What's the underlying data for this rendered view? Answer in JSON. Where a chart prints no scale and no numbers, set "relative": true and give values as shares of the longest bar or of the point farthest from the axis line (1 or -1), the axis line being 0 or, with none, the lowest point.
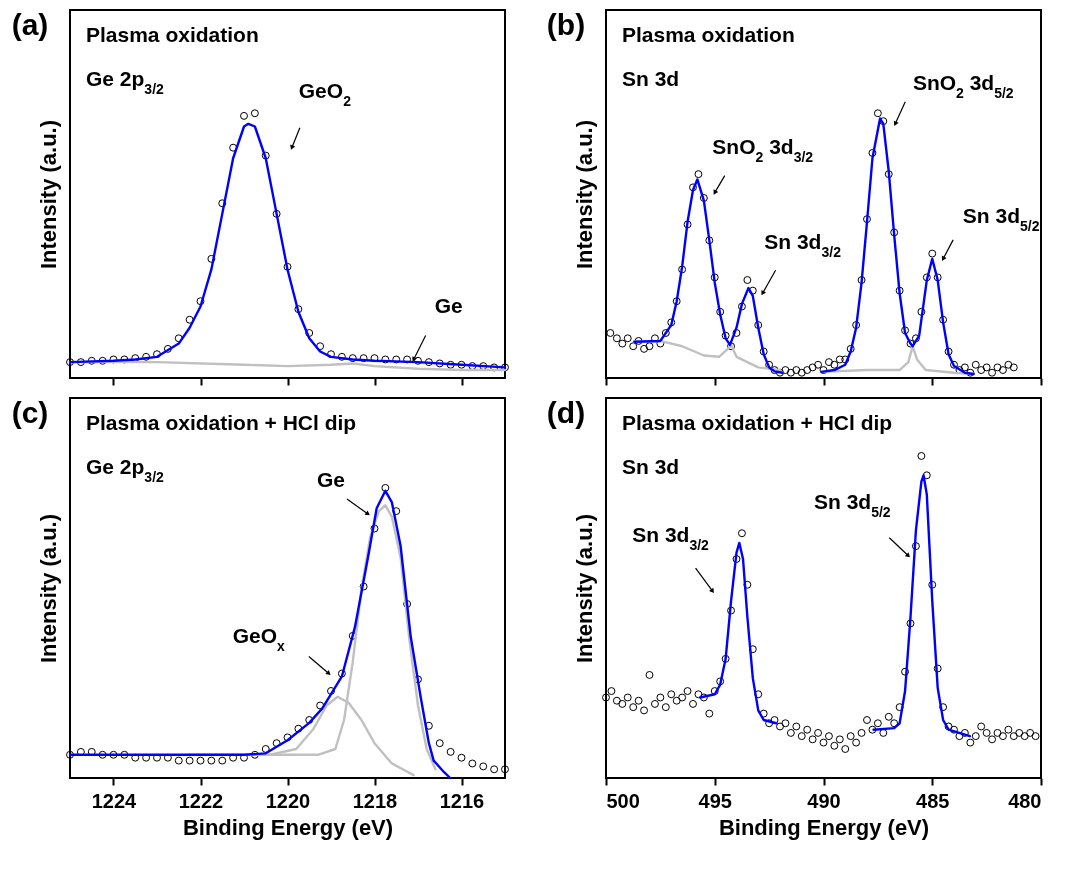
{
  "chart_data": [
    {
      "type": "scatter",
      "title": "(a)",
      "ylabel": "Intensity (a.u.)",
      "relative": true,
      "tick_labels": false,
      "xlim": [
        1225,
        1215
      ],
      "xticks": [
        1224,
        1222,
        1220,
        1218,
        1216
      ],
      "annotations": [
        "Plasma oxidation",
        "Ge 2p$_{3/2}$",
        {
          "text": "GeO$_{2}$",
          "x": 1219.9,
          "y": 0.87
        },
        {
          "text": "Ge",
          "x": 1217.1,
          "y": 0.07
        }
      ],
      "series": [
        {
          "type": "scatter",
          "marker": "circle",
          "color": "#000000",
          "x": [
            1225,
            1224.75,
            1224.5,
            1224.25,
            1224,
            1223.75,
            1223.5,
            1223.25,
            1223,
            1222.75,
            1222.5,
            1222.25,
            1222,
            1221.75,
            1221.5,
            1221.25,
            1221,
            1220.75,
            1220.5,
            1220.25,
            1220,
            1219.75,
            1219.5,
            1219.25,
            1219,
            1218.75,
            1218.5,
            1218.25,
            1218,
            1217.75,
            1217.5,
            1217.25,
            1217,
            1216.75,
            1216.5,
            1216.25,
            1216,
            1215.75,
            1215.5,
            1215.25,
            1215
          ],
          "values": [
            0.06,
            0.06,
            0.065,
            0.065,
            0.07,
            0.07,
            0.075,
            0.08,
            0.09,
            0.11,
            0.15,
            0.22,
            0.29,
            0.45,
            0.66,
            0.87,
            0.99,
            1.0,
            0.84,
            0.62,
            0.42,
            0.26,
            0.17,
            0.12,
            0.09,
            0.08,
            0.075,
            0.075,
            0.075,
            0.07,
            0.07,
            0.07,
            0.065,
            0.06,
            0.055,
            0.05,
            0.05,
            0.045,
            0.045,
            0.04,
            0.04
          ]
        },
        {
          "type": "line",
          "color": "#c0c0c0",
          "x": [
            1225,
            1223,
            1221,
            1220,
            1219,
            1218.5,
            1218,
            1217,
            1216,
            1215
          ],
          "values": [
            0.06,
            0.06,
            0.05,
            0.045,
            0.05,
            0.055,
            0.045,
            0.035,
            0.03,
            0.03
          ]
        },
        {
          "type": "line",
          "color": "#0000ff",
          "x": [
            1225,
            1224,
            1223.5,
            1223,
            1222.5,
            1222.25,
            1222,
            1221.75,
            1221.5,
            1221.25,
            1221,
            1220.9,
            1220.75,
            1220.5,
            1220.25,
            1220,
            1219.75,
            1219.5,
            1219.25,
            1219,
            1218.5,
            1218,
            1217,
            1216,
            1215
          ],
          "values": [
            0.06,
            0.065,
            0.07,
            0.08,
            0.13,
            0.19,
            0.27,
            0.41,
            0.62,
            0.83,
            0.95,
            0.96,
            0.95,
            0.83,
            0.62,
            0.41,
            0.25,
            0.15,
            0.1,
            0.08,
            0.07,
            0.065,
            0.06,
            0.05,
            0.04
          ]
        }
      ]
    },
    {
      "type": "scatter",
      "title": "(b)",
      "ylabel": "Intensity (a.u.)",
      "relative": true,
      "tick_labels": false,
      "xlim": [
        500,
        480
      ],
      "xticks": [
        500,
        495,
        490,
        485,
        480
      ],
      "annotations": [
        "Plasma oxidation",
        "Sn 3d",
        {
          "text": "SnO$_{2}$ 3d$_{3/2}$",
          "x": 495.0,
          "y": 0.7
        },
        {
          "text": "Sn 3d$_{3/2}$",
          "x": 492.8,
          "y": 0.32
        },
        {
          "text": "SnO$_{2}$ 3d$_{5/2}$",
          "x": 486.7,
          "y": 0.96
        },
        {
          "text": "Sn 3d$_{5/2}$",
          "x": 484.5,
          "y": 0.45
        }
      ],
      "series": [
        {
          "type": "scatter",
          "marker": "circle",
          "color": "#000000",
          "x": [
            499.8,
            499.5,
            499.25,
            499,
            498.75,
            498.5,
            498.25,
            498,
            497.75,
            497.5,
            497.25,
            497,
            496.75,
            496.5,
            496.25,
            496,
            495.75,
            495.5,
            495.25,
            495,
            494.75,
            494.5,
            494.25,
            494,
            493.75,
            493.5,
            493.25,
            493,
            492.75,
            492.5,
            492.25,
            492,
            491.75,
            491.5,
            491.25,
            491,
            490.75,
            490.5,
            490.25,
            490,
            489.75,
            489.5,
            489.25,
            489,
            488.75,
            488.5,
            488.25,
            488,
            487.75,
            487.5,
            487.25,
            487,
            486.75,
            486.5,
            486.25,
            486,
            485.75,
            485.5,
            485.25,
            485,
            484.75,
            484.5,
            484.25,
            484,
            483.75,
            483.5,
            483.25,
            483,
            482.75,
            482.5,
            482.25,
            482,
            481.75,
            481.5,
            481.25
          ],
          "values": [
            0.17,
            0.15,
            0.13,
            0.15,
            0.12,
            0.14,
            0.11,
            0.12,
            0.15,
            0.13,
            0.17,
            0.21,
            0.29,
            0.41,
            0.58,
            0.72,
            0.77,
            0.68,
            0.52,
            0.38,
            0.25,
            0.16,
            0.12,
            0.17,
            0.27,
            0.37,
            0.33,
            0.2,
            0.1,
            0.05,
            0.03,
            0.02,
            0.03,
            0.02,
            0.03,
            0.02,
            0.03,
            0.04,
            0.05,
            0.03,
            0.06,
            0.05,
            0.07,
            0.07,
            0.11,
            0.2,
            0.37,
            0.6,
            0.85,
            1.0,
            0.97,
            0.77,
            0.55,
            0.33,
            0.18,
            0.13,
            0.15,
            0.25,
            0.38,
            0.47,
            0.38,
            0.22,
            0.1,
            0.05,
            0.03,
            0.04,
            0.02,
            0.05,
            0.03,
            0.04,
            0.02,
            0.04,
            0.03,
            0.05,
            0.04
          ]
        },
        {
          "type": "line",
          "color": "#c0c0c0",
          "x": [
            498.7,
            497.5,
            496.5,
            495.5,
            494.8,
            494.4,
            494.25,
            494,
            493.5,
            493,
            492,
            491.9
          ],
          "values": [
            0.137,
            0.14,
            0.12,
            0.085,
            0.08,
            0.11,
            0.125,
            0.08,
            0.06,
            0.04,
            0.03,
            0.02
          ]
        },
        {
          "type": "line",
          "color": "#c0c0c0",
          "x": [
            490.1,
            488,
            486.5,
            486.1,
            485.9,
            485.7,
            485.3,
            484,
            483.1
          ],
          "values": [
            0.023,
            0.03,
            0.03,
            0.06,
            0.12,
            0.07,
            0.03,
            0.02,
            0.015
          ]
        },
        {
          "type": "line",
          "color": "#0000ff",
          "x": [
            498.7,
            497.5,
            497,
            496.75,
            496.5,
            496.25,
            496,
            495.8,
            495.5,
            495.25,
            495,
            494.75,
            494.5,
            494.3,
            494,
            493.75,
            493.45,
            493.25,
            493,
            492.75,
            492.5,
            492.25,
            491.9
          ],
          "values": [
            0.137,
            0.14,
            0.2,
            0.29,
            0.42,
            0.59,
            0.71,
            0.75,
            0.67,
            0.52,
            0.36,
            0.24,
            0.15,
            0.125,
            0.19,
            0.28,
            0.34,
            0.31,
            0.19,
            0.09,
            0.04,
            0.025,
            0.02
          ]
        },
        {
          "type": "line",
          "color": "#0000ff",
          "x": [
            490.1,
            489.5,
            489,
            488.75,
            488.5,
            488.25,
            488,
            487.75,
            487.4,
            487.25,
            487,
            486.75,
            486.5,
            486.25,
            486,
            485.9,
            485.6,
            485.25,
            485,
            484.75,
            484.5,
            484.25,
            484,
            483.5,
            483.1
          ],
          "values": [
            0.023,
            0.03,
            0.05,
            0.1,
            0.19,
            0.36,
            0.59,
            0.83,
            0.98,
            0.96,
            0.78,
            0.54,
            0.32,
            0.17,
            0.13,
            0.12,
            0.16,
            0.37,
            0.45,
            0.37,
            0.21,
            0.09,
            0.045,
            0.02,
            0.015
          ]
        }
      ]
    },
    {
      "type": "scatter",
      "title": "(c)",
      "xlabel": "Binding Energy (eV)",
      "ylabel": "Intensity (a.u.)",
      "relative": true,
      "tick_labels": "x",
      "xlim": [
        1225,
        1215
      ],
      "xticks": [
        1224,
        1222,
        1220,
        1218,
        1216
      ],
      "annotations": [
        "Plasma oxidation + HCl dip",
        "Ge 2p$_{3/2}$",
        {
          "text": "Ge",
          "x": 1218.15,
          "y": 0.91
        },
        {
          "text": "GeO$_{x}$",
          "x": 1219.05,
          "y": 0.36
        }
      ],
      "series": [
        {
          "type": "scatter",
          "marker": "circle",
          "color": "#000000",
          "x": [
            1225,
            1224.75,
            1224.5,
            1224.25,
            1224,
            1223.75,
            1223.5,
            1223.25,
            1223,
            1222.75,
            1222.5,
            1222.25,
            1222,
            1221.75,
            1221.5,
            1221.25,
            1221,
            1220.75,
            1220.5,
            1220.25,
            1220,
            1219.75,
            1219.5,
            1219.25,
            1219,
            1218.75,
            1218.5,
            1218.25,
            1218,
            1217.75,
            1217.5,
            1217.25,
            1217,
            1216.75,
            1216.5,
            1216.25,
            1216,
            1215.75,
            1215.5,
            1215.25,
            1215
          ],
          "values": [
            0.08,
            0.09,
            0.09,
            0.08,
            0.08,
            0.08,
            0.07,
            0.07,
            0.07,
            0.07,
            0.06,
            0.06,
            0.06,
            0.06,
            0.06,
            0.07,
            0.07,
            0.08,
            0.1,
            0.12,
            0.14,
            0.17,
            0.2,
            0.25,
            0.3,
            0.36,
            0.49,
            0.66,
            0.86,
            1.0,
            0.92,
            0.6,
            0.34,
            0.18,
            0.12,
            0.09,
            0.07,
            0.05,
            0.04,
            0.03,
            0.03
          ]
        },
        {
          "type": "line",
          "color": "#c0c0c0",
          "x": [
            1222.3,
            1219.3,
            1218.9,
            1218.7,
            1218.5,
            1218.3,
            1218.1,
            1217.9,
            1217.75,
            1217.6,
            1217.4,
            1217.2,
            1217,
            1216.8,
            1216.6
          ],
          "values": [
            0.08,
            0.08,
            0.1,
            0.2,
            0.4,
            0.65,
            0.83,
            0.92,
            0.94,
            0.9,
            0.76,
            0.48,
            0.25,
            0.1,
            0.03
          ]
        },
        {
          "type": "line",
          "color": "#c0c0c0",
          "x": [
            1220.4,
            1219.8,
            1219.4,
            1219.1,
            1218.85,
            1218.6,
            1218.3,
            1218,
            1217.6,
            1217.1
          ],
          "values": [
            0.08,
            0.1,
            0.17,
            0.25,
            0.28,
            0.26,
            0.2,
            0.12,
            0.05,
            0.01
          ]
        },
        {
          "type": "line",
          "color": "#0000ff",
          "x": [
            1225,
            1221,
            1220.5,
            1220,
            1219.5,
            1219.2,
            1218.75,
            1218.45,
            1218.15,
            1217.95,
            1217.75,
            1217.6,
            1217.4,
            1217.17,
            1216.94,
            1216.75,
            1216.64,
            1216.4,
            1216.26
          ],
          "values": [
            0.08,
            0.08,
            0.085,
            0.13,
            0.19,
            0.24,
            0.35,
            0.52,
            0.76,
            0.93,
            0.99,
            0.95,
            0.8,
            0.49,
            0.28,
            0.12,
            0.06,
            0.02,
            0
          ]
        }
      ]
    },
    {
      "type": "scatter",
      "title": "(d)",
      "xlabel": "Binding Energy (eV)",
      "ylabel": "Intensity (a.u.)",
      "relative": true,
      "tick_labels": "x",
      "xlim": [
        500,
        480
      ],
      "xticks": [
        500,
        495,
        490,
        485,
        480
      ],
      "annotations": [
        "Plasma oxidation + HCl dip",
        "Sn 3d",
        {
          "text": "Sn 3d$_{3/2}$",
          "x": 495.1,
          "y": 0.58
        },
        {
          "text": "Sn 3d$_{5/2}$",
          "x": 486.1,
          "y": 0.69
        }
      ],
      "series": [
        {
          "type": "scatter",
          "marker": "circle",
          "color": "#000000",
          "x": [
            500,
            499.75,
            499.5,
            499.25,
            499,
            498.75,
            498.5,
            498.25,
            498,
            497.75,
            497.5,
            497.25,
            497,
            496.75,
            496.5,
            496.25,
            496,
            495.75,
            495.5,
            495.25,
            495,
            494.75,
            494.5,
            494.25,
            494,
            493.75,
            493.5,
            493.25,
            493,
            492.75,
            492.5,
            492.25,
            492,
            491.75,
            491.5,
            491.25,
            491,
            490.75,
            490.5,
            490.25,
            490,
            489.75,
            489.5,
            489.25,
            489,
            488.75,
            488.5,
            488.25,
            488,
            487.75,
            487.5,
            487.25,
            487,
            486.75,
            486.5,
            486.25,
            486,
            485.75,
            485.5,
            485.25,
            485,
            484.75,
            484.5,
            484.25,
            484,
            483.75,
            483.5,
            483.25,
            483,
            482.75,
            482.5,
            482.25,
            482,
            481.75,
            481.5,
            481.25,
            481,
            480.75,
            480.5,
            480.25
          ],
          "values": [
            0.25,
            0.27,
            0.24,
            0.23,
            0.25,
            0.22,
            0.24,
            0.21,
            0.32,
            0.23,
            0.25,
            0.22,
            0.26,
            0.24,
            0.25,
            0.27,
            0.23,
            0.26,
            0.25,
            0.2,
            0.27,
            0.3,
            0.37,
            0.52,
            0.68,
            0.76,
            0.6,
            0.4,
            0.26,
            0.2,
            0.17,
            0.18,
            0.16,
            0.17,
            0.14,
            0.16,
            0.13,
            0.15,
            0.12,
            0.14,
            0.11,
            0.13,
            0.1,
            0.12,
            0.09,
            0.13,
            0.11,
            0.14,
            0.18,
            0.15,
            0.17,
            0.14,
            0.19,
            0.17,
            0.22,
            0.33,
            0.48,
            0.72,
            1.0,
            0.94,
            0.6,
            0.34,
            0.22,
            0.16,
            0.15,
            0.13,
            0.14,
            0.11,
            0.13,
            0.16,
            0.14,
            0.12,
            0.14,
            0.13,
            0.15,
            0.13,
            0.14,
            0.13,
            0.14,
            0.13
          ]
        },
        {
          "type": "line",
          "color": "#0000ff",
          "x": [
            495.67,
            495,
            494.75,
            494.5,
            494.25,
            494,
            493.87,
            493.7,
            493.5,
            493.25,
            493,
            492.75,
            492.17
          ],
          "values": [
            0.25,
            0.26,
            0.29,
            0.37,
            0.55,
            0.7,
            0.73,
            0.68,
            0.5,
            0.31,
            0.21,
            0.18,
            0.17
          ]
        },
        {
          "type": "line",
          "color": "#0000ff",
          "x": [
            487.7,
            486.75,
            486.5,
            486.25,
            486,
            485.75,
            485.5,
            485.4,
            485.25,
            485,
            484.75,
            484.5,
            484.25,
            483.27
          ],
          "values": [
            0.15,
            0.155,
            0.17,
            0.27,
            0.5,
            0.77,
            0.92,
            0.94,
            0.88,
            0.55,
            0.28,
            0.18,
            0.15,
            0.13
          ]
        }
      ]
    }
  ]
}
